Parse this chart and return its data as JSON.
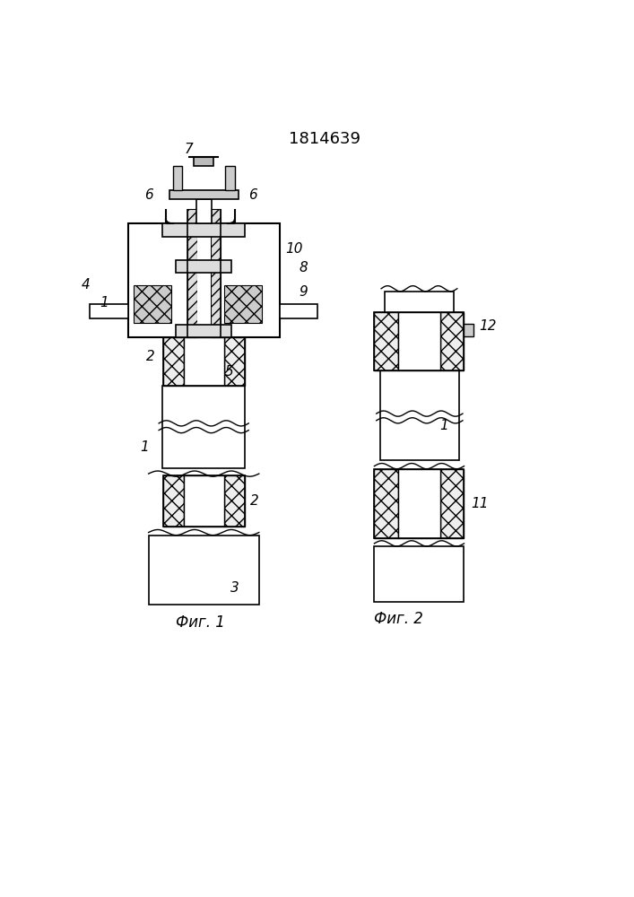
{
  "title": "1814639",
  "fig1_label": "Фиг. 1",
  "fig2_label": "Фиг. 2",
  "bg_color": "#ffffff",
  "line_color": "#000000"
}
